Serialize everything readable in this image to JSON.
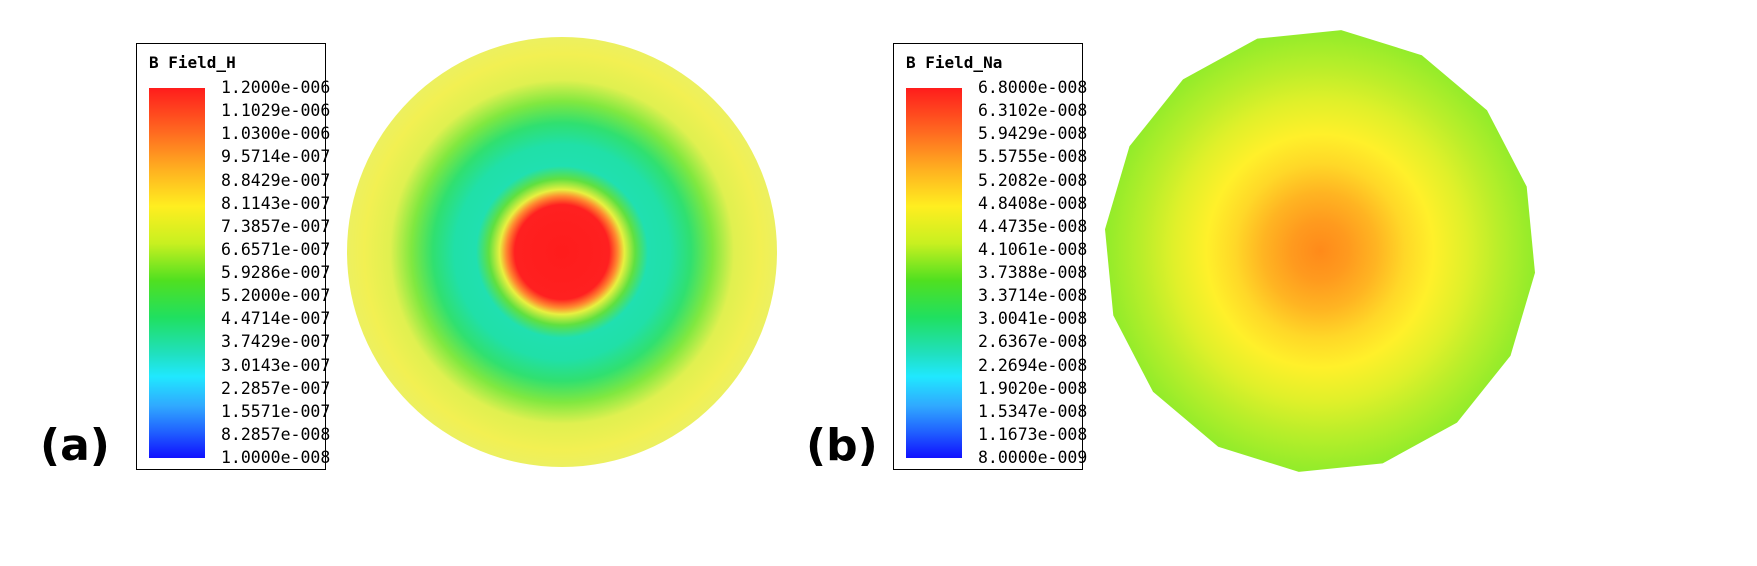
{
  "panels": [
    {
      "label": "(a)",
      "legend_title": "B Field_H",
      "legend_values": [
        "1.2000e-006",
        "1.1029e-006",
        "1.0300e-006",
        "9.5714e-007",
        "8.8429e-007",
        "8.1143e-007",
        "7.3857e-007",
        "6.6571e-007",
        "5.9286e-007",
        "5.2000e-007",
        "4.4714e-007",
        "3.7429e-007",
        "3.0143e-007",
        "2.2857e-007",
        "1.5571e-007",
        "8.2857e-008",
        "1.0000e-008"
      ],
      "colors": {
        "max": "#ff1c1c",
        "ring": "#20e0a0",
        "outer": "#f0f050"
      }
    },
    {
      "label": "(b)",
      "legend_title": "B Field_Na",
      "legend_values": [
        "6.8000e-008",
        "6.3102e-008",
        "5.9429e-008",
        "5.5755e-008",
        "5.2082e-008",
        "4.8408e-008",
        "4.4735e-008",
        "4.1061e-008",
        "3.7388e-008",
        "3.3714e-008",
        "3.0041e-008",
        "2.6367e-008",
        "2.2694e-008",
        "1.9020e-008",
        "1.5347e-008",
        "1.1673e-008",
        "8.0000e-009"
      ],
      "colors": {
        "center": "#ff8c1a",
        "outer": "#88ee2a"
      }
    }
  ]
}
